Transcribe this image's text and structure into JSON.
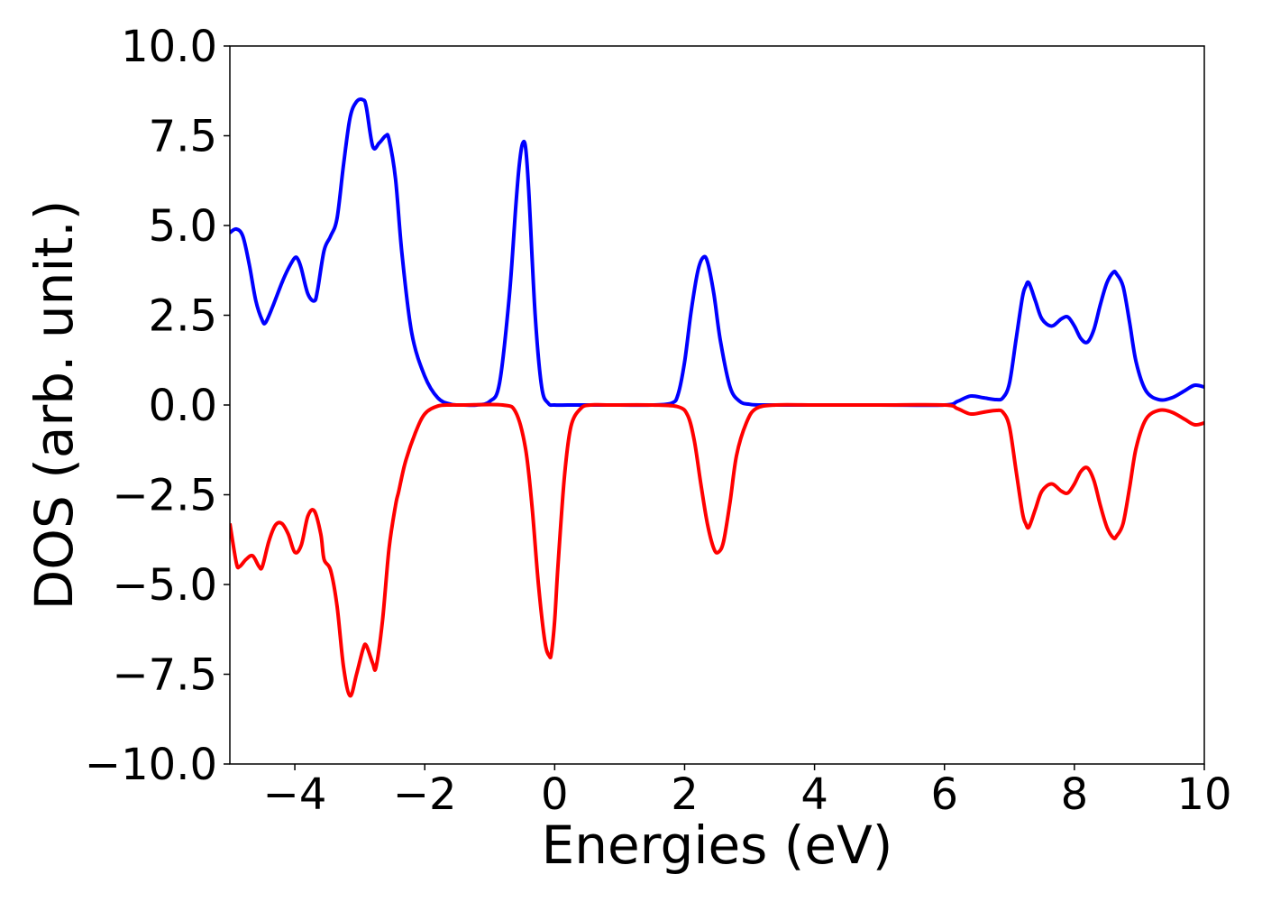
{
  "chart_data": {
    "type": "line",
    "title": "",
    "xlabel": "Energies (eV)",
    "ylabel": "DOS (arb. unit.)",
    "xlim": [
      -5,
      10
    ],
    "ylim": [
      -10,
      10
    ],
    "xticks": [
      -4,
      -2,
      0,
      2,
      4,
      6,
      8,
      10
    ],
    "xtick_labels": [
      "−4",
      "−2",
      "0",
      "2",
      "4",
      "6",
      "8",
      "10"
    ],
    "yticks": [
      10,
      7.5,
      5,
      2.5,
      0,
      -2.5,
      -5,
      -7.5,
      -10
    ],
    "ytick_labels": [
      "10.0",
      "7.5",
      "5.0",
      "2.5",
      "0.0",
      "−2.5",
      "−5.0",
      "−7.5",
      "−10.0"
    ],
    "grid": false,
    "legend": "none",
    "series": [
      {
        "color": "#0000ff",
        "x": [
          -5.0,
          -4.9,
          -4.8,
          -4.7,
          -4.6,
          -4.5,
          -4.45,
          -4.35,
          -4.2,
          -4.1,
          -4.0,
          -3.95,
          -3.9,
          -3.8,
          -3.7,
          -3.65,
          -3.55,
          -3.45,
          -3.35,
          -3.25,
          -3.15,
          -3.05,
          -2.95,
          -2.9,
          -2.8,
          -2.7,
          -2.6,
          -2.55,
          -2.45,
          -2.35,
          -2.2,
          -2.0,
          -1.8,
          -1.6,
          -1.4,
          -1.2,
          -1.0,
          -0.85,
          -0.7,
          -0.6,
          -0.55,
          -0.5,
          -0.45,
          -0.4,
          -0.3,
          -0.2,
          -0.1,
          0.0,
          0.2,
          0.5,
          1.0,
          1.5,
          1.8,
          1.9,
          2.0,
          2.1,
          2.2,
          2.28,
          2.35,
          2.45,
          2.55,
          2.7,
          2.85,
          3.0,
          3.2,
          4.0,
          5.0,
          6.0,
          6.2,
          6.4,
          6.6,
          6.8,
          6.9,
          7.0,
          7.1,
          7.2,
          7.25,
          7.3,
          7.4,
          7.5,
          7.65,
          7.8,
          7.9,
          8.0,
          8.1,
          8.2,
          8.3,
          8.4,
          8.5,
          8.6,
          8.65,
          8.75,
          8.85,
          8.95,
          9.1,
          9.3,
          9.5,
          9.7,
          9.85,
          10.0
        ],
        "y": [
          4.8,
          4.9,
          4.7,
          3.9,
          2.9,
          2.35,
          2.3,
          2.7,
          3.4,
          3.8,
          4.1,
          4.05,
          3.8,
          3.1,
          2.9,
          3.2,
          4.3,
          4.7,
          5.2,
          6.7,
          8.0,
          8.45,
          8.5,
          8.3,
          7.2,
          7.3,
          7.5,
          7.4,
          6.3,
          4.2,
          2.0,
          0.8,
          0.2,
          0.02,
          0.0,
          0.0,
          0.1,
          0.6,
          3.0,
          5.5,
          6.6,
          7.25,
          7.2,
          6.0,
          2.5,
          0.5,
          0.05,
          0.0,
          0.0,
          0.0,
          0.0,
          0.0,
          0.05,
          0.3,
          1.2,
          2.6,
          3.7,
          4.1,
          4.0,
          3.1,
          1.8,
          0.5,
          0.1,
          0.02,
          0.0,
          0.0,
          0.0,
          0.0,
          0.1,
          0.25,
          0.2,
          0.15,
          0.2,
          0.6,
          1.8,
          3.0,
          3.3,
          3.4,
          2.9,
          2.4,
          2.2,
          2.4,
          2.45,
          2.2,
          1.85,
          1.75,
          2.1,
          2.8,
          3.4,
          3.7,
          3.65,
          3.3,
          2.3,
          1.2,
          0.4,
          0.15,
          0.2,
          0.4,
          0.55,
          0.5
        ]
      },
      {
        "color": "#ff0000",
        "x": [
          -5.0,
          -4.9,
          -4.85,
          -4.75,
          -4.65,
          -4.55,
          -4.5,
          -4.4,
          -4.3,
          -4.2,
          -4.1,
          -4.0,
          -3.9,
          -3.8,
          -3.7,
          -3.6,
          -3.55,
          -3.45,
          -3.35,
          -3.25,
          -3.15,
          -3.05,
          -2.95,
          -2.9,
          -2.8,
          -2.75,
          -2.65,
          -2.55,
          -2.45,
          -2.4,
          -2.3,
          -2.15,
          -2.0,
          -1.8,
          -1.6,
          -1.4,
          -0.8,
          -0.6,
          -0.45,
          -0.35,
          -0.25,
          -0.15,
          -0.08,
          -0.05,
          0.0,
          0.05,
          0.15,
          0.25,
          0.4,
          0.55,
          0.8,
          1.5,
          1.9,
          2.05,
          2.15,
          2.25,
          2.35,
          2.45,
          2.52,
          2.6,
          2.7,
          2.8,
          2.95,
          3.1,
          3.4,
          4.0,
          5.0,
          6.0,
          6.2,
          6.4,
          6.6,
          6.8,
          6.9,
          7.0,
          7.1,
          7.2,
          7.25,
          7.3,
          7.4,
          7.5,
          7.65,
          7.8,
          7.9,
          8.0,
          8.1,
          8.2,
          8.3,
          8.4,
          8.5,
          8.6,
          8.65,
          8.75,
          8.85,
          8.95,
          9.1,
          9.3,
          9.5,
          9.7,
          9.85,
          10.0
        ],
        "y": [
          -3.3,
          -4.4,
          -4.5,
          -4.3,
          -4.2,
          -4.5,
          -4.5,
          -3.8,
          -3.35,
          -3.3,
          -3.6,
          -4.1,
          -3.9,
          -3.1,
          -2.95,
          -3.6,
          -4.3,
          -4.6,
          -5.6,
          -7.3,
          -8.1,
          -7.5,
          -6.8,
          -6.7,
          -7.2,
          -7.3,
          -6.0,
          -4.0,
          -2.8,
          -2.4,
          -1.6,
          -0.8,
          -0.25,
          -0.03,
          0.0,
          0.0,
          0.0,
          -0.2,
          -1.2,
          -2.8,
          -5.0,
          -6.6,
          -7.0,
          -6.9,
          -6.0,
          -4.5,
          -2.0,
          -0.6,
          -0.1,
          0.0,
          0.0,
          0.0,
          -0.05,
          -0.3,
          -1.0,
          -2.2,
          -3.3,
          -4.0,
          -4.1,
          -3.8,
          -2.7,
          -1.4,
          -0.5,
          -0.1,
          0.0,
          0.0,
          0.0,
          0.0,
          -0.1,
          -0.25,
          -0.2,
          -0.15,
          -0.2,
          -0.6,
          -1.8,
          -3.0,
          -3.3,
          -3.4,
          -2.9,
          -2.4,
          -2.2,
          -2.4,
          -2.45,
          -2.2,
          -1.85,
          -1.75,
          -2.1,
          -2.8,
          -3.4,
          -3.7,
          -3.65,
          -3.3,
          -2.3,
          -1.2,
          -0.4,
          -0.15,
          -0.2,
          -0.4,
          -0.55,
          -0.5
        ]
      }
    ]
  }
}
